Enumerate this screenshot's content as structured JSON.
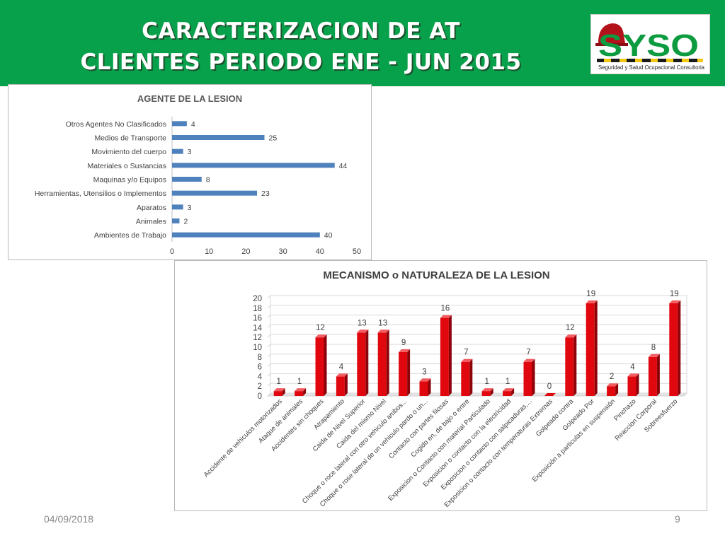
{
  "slide": {
    "title_line1": "CARACTERIZACION DE AT",
    "title_line2": "CLIENTES  PERIODO ENE - JUN  2015",
    "logo_text": "SYSO",
    "logo_subtitle": "Seguridad y Salud Ocupacional Consultoria",
    "footer_date": "04/09/2018",
    "footer_page": "9"
  },
  "colors": {
    "header_green": "#06a14a",
    "bar_blue": "#4f81bd",
    "bar_red": "#e0070f"
  },
  "chart_data": [
    {
      "type": "bar",
      "orientation": "horizontal",
      "title": "AGENTE DE LA LESION",
      "categories": [
        "Otros Agentes No Clasificados",
        "Medios de Transporte",
        "Movimiento del cuerpo",
        "Materiales o Sustancias",
        "Maquinas y/o Equipos",
        "Herramientas, Utensilios o Implementos",
        "Aparatos",
        "Animales",
        "Ambientes de Trabajo"
      ],
      "values": [
        4,
        25,
        3,
        44,
        8,
        23,
        3,
        2,
        40
      ],
      "xlim": [
        0,
        50
      ],
      "xticks": [
        0,
        10,
        20,
        30,
        40,
        50
      ],
      "grid": false,
      "data_labels": true
    },
    {
      "type": "bar",
      "orientation": "vertical",
      "style": "3d",
      "title": "MECANISMO o NATURALEZA DE LA LESION",
      "categories": [
        "Accidente de vehiculos motorizados",
        "Ataque de animales",
        "Accidentes sin choques",
        "Atrapamiento",
        "Caida de Nivel Superior",
        "Caida del mismo Nivel",
        "Choque o roce lateral con otro vehiculo ambos...",
        "Choque o rose lateral de un vehiculo pardo o un...",
        "Contacto con partes filosas",
        "Cogido en, de bajo o entre",
        "Exposicion o Contacto con material Particulado",
        "Exposicion o contacto con la electricidad",
        "Exposicion o contacto con salpicaduras,...",
        "Exposicion o contacto con temperaturas Extremas",
        "Golpeado contra",
        "Golpeado Por",
        "Exposición a particulas en suspensión",
        "Pinchazo",
        "Reaccion Corporal",
        "Sobreesfuerzo"
      ],
      "values": [
        1,
        1,
        12,
        4,
        13,
        13,
        9,
        3,
        16,
        7,
        1,
        1,
        7,
        0,
        12,
        19,
        2,
        4,
        8,
        19
      ],
      "ylim": [
        0,
        20
      ],
      "yticks": [
        0,
        2,
        4,
        6,
        8,
        10,
        12,
        14,
        16,
        18,
        20
      ],
      "grid": true,
      "data_labels": true
    }
  ]
}
